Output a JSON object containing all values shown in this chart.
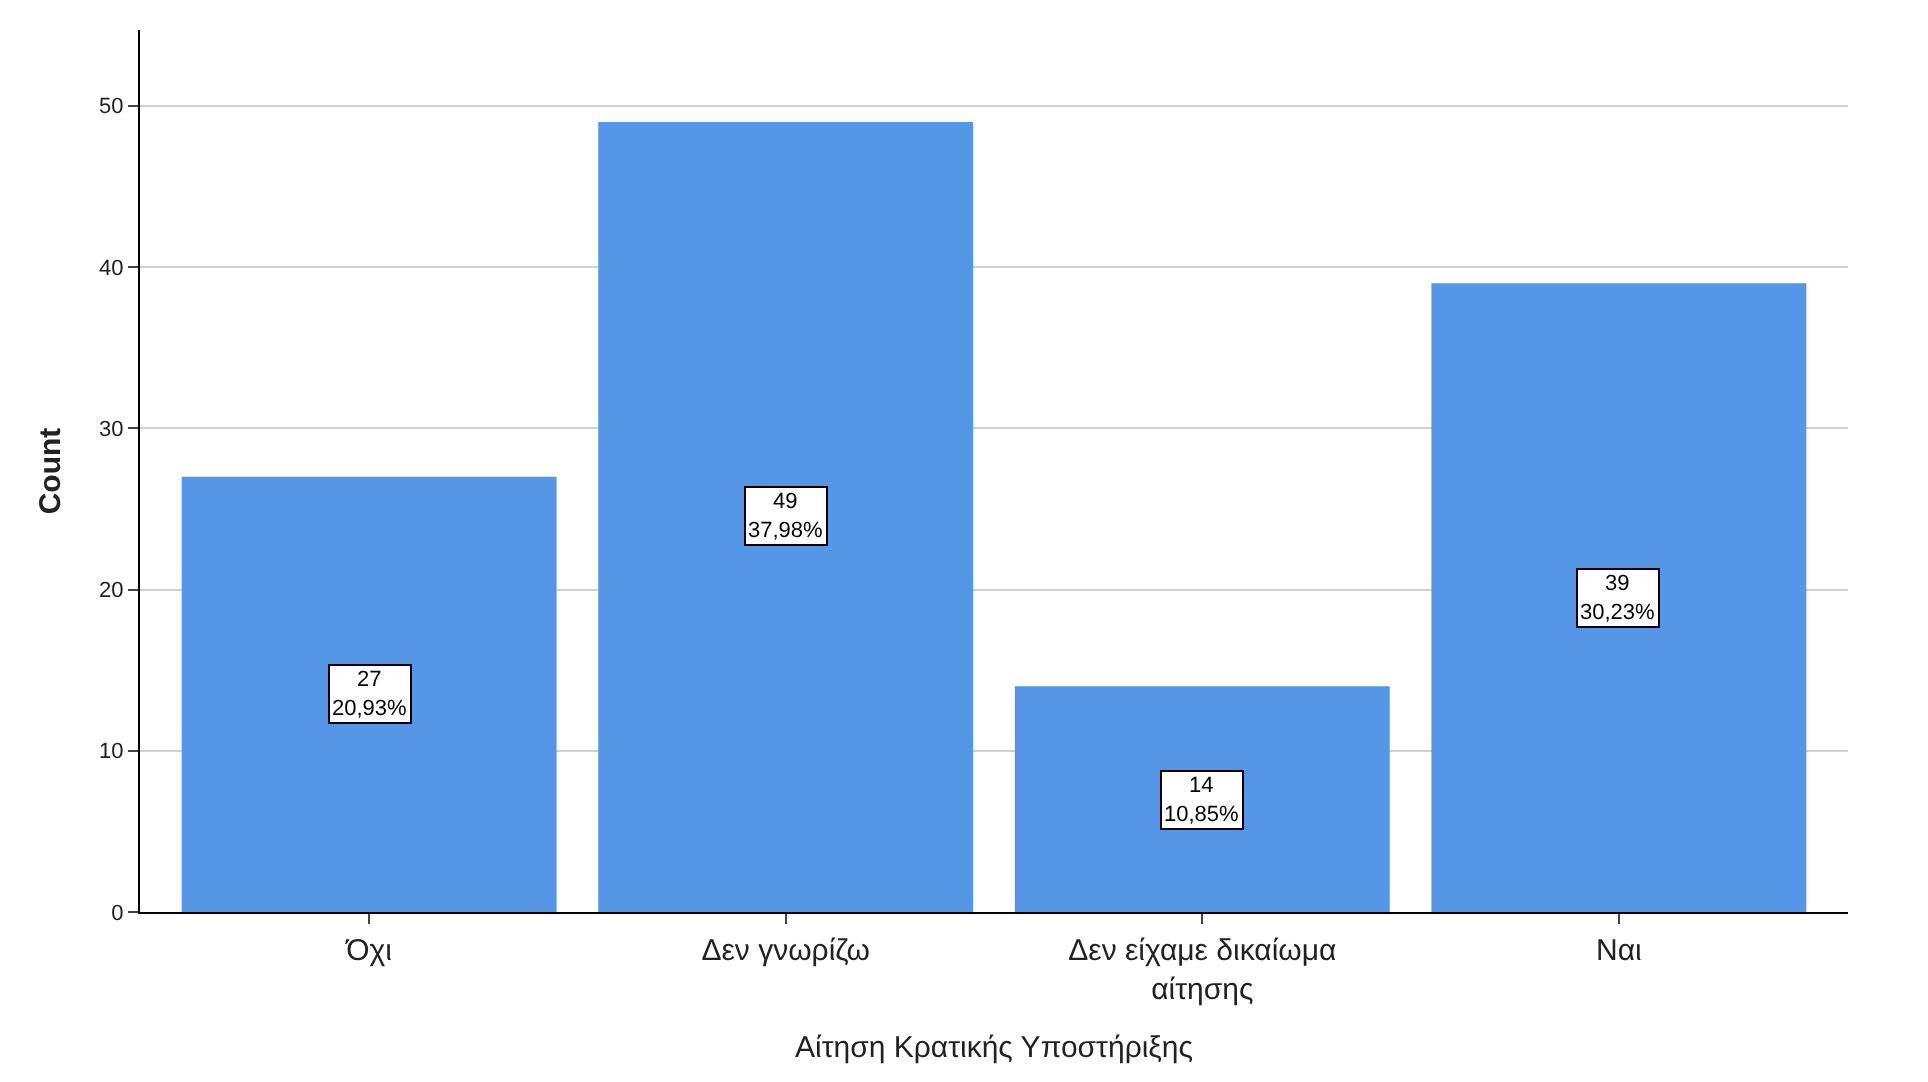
{
  "chart_data": {
    "type": "bar",
    "xlabel": "Αίτηση Κρατικής Υποστήριξης",
    "ylabel": "Count",
    "categories": [
      "Όχι",
      "Δεν γνωρίζω",
      "Δεν είχαμε δικαίωμα αίτησης",
      "Ναι"
    ],
    "values": [
      27,
      49,
      14,
      39
    ],
    "color": "#5596e6",
    "value_labels": [
      "27\n20,93%",
      "49\n37,98%",
      "14\n10,85%",
      "39\n30,23%"
    ],
    "ylim": [
      0,
      54.7
    ],
    "yticks": [
      0,
      10,
      20,
      30,
      40,
      50
    ],
    "grid": "y"
  }
}
